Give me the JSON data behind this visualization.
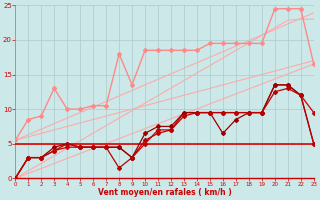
{
  "x": [
    0,
    1,
    2,
    3,
    4,
    5,
    6,
    7,
    8,
    9,
    10,
    11,
    12,
    13,
    14,
    15,
    16,
    17,
    18,
    19,
    20,
    21,
    22,
    23
  ],
  "diag1": [
    0,
    1.09,
    2.17,
    3.26,
    4.35,
    5.43,
    6.52,
    7.61,
    8.7,
    9.78,
    10.87,
    11.96,
    13.04,
    14.13,
    15.22,
    16.3,
    17.39,
    18.48,
    19.57,
    20.65,
    21.74,
    22.83,
    23.0,
    23.0
  ],
  "diag2": [
    0,
    0.72,
    1.43,
    2.15,
    2.87,
    3.59,
    4.3,
    5.02,
    5.74,
    6.46,
    7.17,
    7.89,
    8.61,
    9.33,
    10.04,
    10.76,
    11.48,
    12.2,
    12.91,
    13.63,
    14.35,
    15.07,
    15.78,
    16.5
  ],
  "diag3": [
    5.5,
    6.0,
    6.5,
    7.0,
    7.5,
    8.0,
    8.5,
    9.0,
    9.5,
    10.0,
    10.5,
    11.0,
    11.5,
    12.0,
    12.5,
    13.0,
    13.5,
    14.0,
    14.5,
    15.0,
    15.5,
    16.0,
    16.5,
    17.0
  ],
  "diag4": [
    5.5,
    6.3,
    7.1,
    7.9,
    8.7,
    9.5,
    10.3,
    11.1,
    11.9,
    12.7,
    13.5,
    14.3,
    15.1,
    15.9,
    16.7,
    17.5,
    18.3,
    19.1,
    19.9,
    20.7,
    21.5,
    22.3,
    23.1,
    23.9
  ],
  "pink_curve": [
    5.5,
    8.5,
    9.0,
    13.0,
    10.0,
    10.0,
    10.5,
    10.5,
    18.0,
    13.5,
    18.5,
    18.5,
    18.5,
    18.5,
    18.5,
    19.5,
    19.5,
    19.5,
    19.5,
    19.5,
    24.5,
    24.5,
    24.5,
    16.5
  ],
  "flat_line": [
    5.0,
    5.0,
    5.0,
    5.0,
    5.0,
    5.0,
    5.0,
    5.0,
    5.0,
    5.0,
    5.0,
    5.0,
    5.0,
    5.0,
    5.0,
    5.0,
    5.0,
    5.0,
    5.0,
    5.0,
    5.0,
    5.0,
    5.0,
    5.0
  ],
  "dark1": [
    0.0,
    3.0,
    3.0,
    4.0,
    4.5,
    4.5,
    4.5,
    4.5,
    4.5,
    3.0,
    5.0,
    7.0,
    7.0,
    9.5,
    9.5,
    9.5,
    9.5,
    9.5,
    9.5,
    9.5,
    13.5,
    13.5,
    12.0,
    9.5
  ],
  "dark2": [
    0.0,
    3.0,
    3.0,
    4.5,
    5.0,
    4.5,
    4.5,
    4.5,
    4.5,
    3.0,
    6.5,
    7.5,
    7.5,
    9.5,
    9.5,
    9.5,
    6.5,
    8.5,
    9.5,
    9.5,
    13.5,
    13.5,
    12.0,
    5.0
  ],
  "dark3": [
    0.0,
    3.0,
    3.0,
    4.0,
    5.0,
    4.5,
    4.5,
    4.5,
    1.5,
    3.0,
    5.5,
    6.5,
    7.0,
    9.0,
    9.5,
    9.5,
    9.5,
    9.5,
    9.5,
    9.5,
    12.5,
    13.0,
    12.0,
    5.0
  ],
  "bgcolor": "#cce8e8",
  "grid_color": "#aacccc",
  "xlabel": "Vent moyen/en rafales ( km/h )",
  "ylim": [
    0,
    25
  ],
  "xlim": [
    0,
    23
  ],
  "yticks": [
    0,
    5,
    10,
    15,
    20,
    25
  ],
  "xticks": [
    0,
    1,
    2,
    3,
    4,
    5,
    6,
    7,
    8,
    9,
    10,
    11,
    12,
    13,
    14,
    15,
    16,
    17,
    18,
    19,
    20,
    21,
    22,
    23
  ],
  "color_light": "#ffaaaa",
  "color_pink": "#ff8888",
  "color_flat": "#dd0000",
  "color_dark1": "#cc0000",
  "color_dark2": "#990000",
  "color_dark3": "#bb0000"
}
